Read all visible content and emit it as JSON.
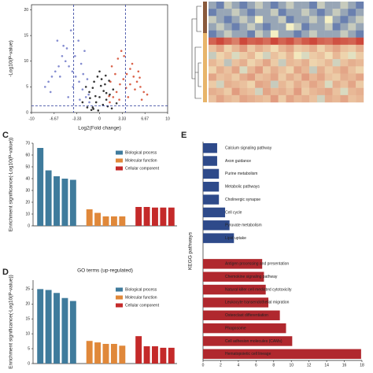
{
  "chart_data": [
    {
      "type": "scatter",
      "xlabel": "Log2(Fold change)",
      "ylabel": "-Log10(P-value)",
      "xlim": [
        -10,
        10
      ],
      "ylim": [
        0,
        21
      ],
      "xticks": [
        -10,
        -6.67,
        -3.33,
        0,
        3.33,
        6.67,
        10
      ],
      "yticks": [
        0,
        5,
        10,
        15,
        20
      ],
      "vlines": [
        -3.8,
        3.8
      ],
      "hline": 1.3,
      "series": [
        {
          "color": "#6f78c8",
          "x": [
            -1.5,
            -2,
            -2.5,
            -3,
            -3.5,
            -4,
            -4.5,
            -5,
            -5.5,
            -6,
            -6.5,
            -7,
            -7.5,
            -8,
            -2.2,
            -3.1,
            -4.2,
            -5.3,
            -1.8,
            -2.7,
            -3.6,
            -4.8,
            -6.2,
            -1.6,
            -2.4,
            -3.9,
            -5.8,
            -7.2,
            -2.9,
            -4.6
          ],
          "values": [
            2,
            3,
            4.5,
            6,
            7,
            8,
            9,
            10,
            11,
            9,
            8,
            7,
            6,
            5,
            12,
            14,
            16,
            13,
            6.5,
            9.5,
            11,
            12.5,
            14,
            3.5,
            7.5,
            5,
            7,
            4,
            2.5,
            3
          ]
        },
        {
          "color": "#d4482c",
          "x": [
            1.5,
            2,
            2.5,
            3,
            3.5,
            4,
            4.5,
            5,
            5.5,
            6,
            6.5,
            7,
            1.8,
            2.7,
            3.6,
            4.8,
            5.7,
            1.6,
            2.3,
            3.2,
            4.2,
            5.2,
            6.2,
            2.9,
            3.9,
            1.4,
            4.5,
            5.9
          ],
          "values": [
            2,
            3,
            4,
            5.5,
            6.5,
            7.5,
            8.5,
            7,
            6,
            5,
            4,
            3.5,
            9,
            10.5,
            11,
            9.5,
            8,
            6,
            7.5,
            12,
            3,
            4.5,
            2.5,
            2.5,
            4.8,
            3.2,
            5.5,
            6.8
          ]
        },
        {
          "color": "#111111",
          "x": [
            -1,
            -0.5,
            0,
            0.5,
            1,
            -1.5,
            1.5,
            -2,
            2,
            -0.8,
            0.8,
            -0.3,
            0.3,
            -1.2,
            1.2,
            -2.5,
            2.5,
            -0.6,
            0.6,
            0,
            -1.8,
            1.8,
            -1,
            1,
            -0.2,
            0.2,
            -1.4,
            1.4,
            -0.9,
            0.9
          ],
          "values": [
            1,
            2,
            3,
            1.5,
            2.5,
            4,
            3.5,
            5,
            4.5,
            6,
            5.5,
            7,
            6.5,
            0.5,
            1.2,
            2,
            1.8,
            3.2,
            4.2,
            8,
            1,
            0.8,
            4.8,
            3.8,
            0.4,
            5.2,
            2.8,
            6.2,
            0.7,
            7.2
          ]
        }
      ]
    },
    {
      "type": "heatmap",
      "zlim": [
        -2,
        2
      ],
      "colors": [
        "#3b5ba8",
        "#f5f0c4",
        "#c8352c"
      ],
      "values": [
        [
          -1,
          -1.5,
          -0.5,
          -1,
          -1.5,
          -1,
          -0.5,
          -1,
          -1.5,
          -1,
          -0.5,
          -1,
          -1,
          -1.5,
          -0.5,
          -1,
          -1,
          -0.5,
          -1,
          -1.5
        ],
        [
          -1.5,
          -1,
          -1,
          -0.5,
          -1,
          -1.5,
          -1,
          -1,
          -0.5,
          -1.5,
          -1,
          -1,
          -0.5,
          -1,
          -1.5,
          -1,
          -0.5,
          -1,
          -1.5,
          -1
        ],
        [
          -0.5,
          -1,
          -1.5,
          -1,
          -0.5,
          -1,
          0,
          -1,
          -1,
          -0.5,
          -1.5,
          -1,
          -1,
          -0.5,
          -1,
          0,
          -1,
          -1.5,
          -1,
          -0.5
        ],
        [
          -1,
          -0.5,
          -1,
          -1.5,
          -1,
          -0.5,
          -1,
          -1.5,
          -1,
          -1,
          0,
          -0.5,
          -1.5,
          -1,
          -1,
          -0.5,
          -1.5,
          -1,
          -0.5,
          -1
        ],
        [
          -1.5,
          -1,
          -0.5,
          -1,
          -1,
          -1.5,
          -0.5,
          -1,
          0,
          -1,
          -1,
          -1.5,
          -1,
          -0.5,
          -1,
          -1,
          -1,
          -0.5,
          -1,
          -1.5
        ],
        [
          1.5,
          1.8,
          1.5,
          1.2,
          1.8,
          1.5,
          1.6,
          1.4,
          1.8,
          1.5,
          1.7,
          1.3,
          1.6,
          1.8,
          1.5,
          1.4,
          1.7,
          1.6,
          1.5,
          1.8
        ],
        [
          0.5,
          0.8,
          0.3,
          0.6,
          0.9,
          0.4,
          0.7,
          0.5,
          0.2,
          0.6,
          0.8,
          0.4,
          0.5,
          0.7,
          0.3,
          0.6,
          0.8,
          0.5,
          0.4,
          0.7
        ],
        [
          -0.5,
          0.3,
          0.5,
          -0.3,
          0.4,
          0.6,
          0.2,
          -0.4,
          0.5,
          0.3,
          0.6,
          0.1,
          -0.3,
          0.4,
          0.5,
          0.2,
          0.6,
          0.3,
          -0.2,
          0.4
        ],
        [
          0.6,
          0.4,
          -0.6,
          0.5,
          0.7,
          0.3,
          0.5,
          0.8,
          0.4,
          -0.5,
          0.6,
          0.5,
          0.7,
          0.3,
          0.4,
          0.6,
          -0.4,
          0.5,
          0.7,
          0.6
        ],
        [
          0.3,
          0.7,
          0.5,
          0.8,
          -0.3,
          0.6,
          0.9,
          0.4,
          0.7,
          0.5,
          0.3,
          0.8,
          0.6,
          -0.5,
          0.7,
          0.4,
          0.6,
          0.8,
          0.5,
          0.3
        ],
        [
          0.8,
          0.5,
          0.6,
          0.4,
          0.7,
          0.9,
          0.5,
          0.6,
          0.8,
          0.4,
          0.7,
          0.5,
          0.9,
          0.6,
          0.8,
          0.5,
          0.4,
          0.7,
          0.6,
          0.8
        ],
        [
          0.4,
          -0.4,
          0.7,
          0.6,
          0.5,
          0.3,
          0.8,
          0.7,
          -0.5,
          0.6,
          0.4,
          0.7,
          0.5,
          0.8,
          0.6,
          -0.3,
          0.7,
          0.5,
          0.8,
          0.4
        ],
        [
          0.7,
          0.6,
          0.4,
          0.9,
          0.6,
          0.5,
          -0.4,
          0.8,
          0.6,
          0.7,
          0.5,
          0.9,
          0.4,
          0.6,
          0.7,
          0.8,
          0.5,
          -0.3,
          0.6,
          0.7
        ],
        [
          0.5,
          0.8,
          0.6,
          0.5,
          0.8,
          0.7,
          0.6,
          0.5,
          0.9,
          0.4,
          0.8,
          0.6,
          0.7,
          0.5,
          -0.4,
          0.7,
          0.6,
          0.8,
          0.5,
          0.6
        ]
      ]
    },
    {
      "type": "bar",
      "label": "C",
      "ylabel": "Enrichment significance(-Log10(P-value))",
      "categories": [
        null,
        null,
        null,
        null,
        null,
        null,
        null,
        null,
        null,
        null,
        null,
        null,
        null,
        null,
        null
      ],
      "ylim": [
        0,
        70
      ],
      "yticks": [
        0,
        10,
        20,
        30,
        40,
        50,
        60,
        70
      ],
      "legend": "upper right",
      "series": [
        {
          "name": "Biological process",
          "color": "#3f7b9c",
          "values": [
            66,
            47,
            42,
            40,
            39,
            null,
            null,
            null,
            null,
            null,
            null,
            null,
            null,
            null,
            null
          ]
        },
        {
          "name": "Molecular function",
          "color": "#e0883a",
          "values": [
            null,
            null,
            null,
            null,
            null,
            14,
            11,
            8,
            8,
            8,
            null,
            null,
            null,
            null,
            null
          ]
        },
        {
          "name": "Cellular component",
          "color": "#c42a2a",
          "values": [
            null,
            null,
            null,
            null,
            null,
            null,
            null,
            null,
            null,
            null,
            16,
            16,
            15.5,
            15.5,
            15.5
          ]
        }
      ]
    },
    {
      "type": "bar",
      "label": "D",
      "title": "GO terms (up-regulated)",
      "ylabel": "Enrichment significance(-Log10(P-value))",
      "categories": [
        null,
        null,
        null,
        null,
        null,
        null,
        null,
        null,
        null,
        null,
        null,
        null,
        null,
        null,
        null
      ],
      "ylim": [
        0,
        28
      ],
      "yticks": [
        0,
        5,
        10,
        15,
        20,
        25
      ],
      "legend": "upper right",
      "series": [
        {
          "name": "Biological process",
          "color": "#3f7b9c",
          "values": [
            25,
            24.7,
            23.7,
            22,
            21,
            null,
            null,
            null,
            null,
            null,
            null,
            null,
            null,
            null,
            null
          ]
        },
        {
          "name": "Molecular function",
          "color": "#e0883a",
          "values": [
            null,
            null,
            null,
            null,
            null,
            7.6,
            7.1,
            6.6,
            6.6,
            6,
            null,
            null,
            null,
            null,
            null
          ]
        },
        {
          "name": "Cellular component",
          "color": "#c42a2a",
          "values": [
            null,
            null,
            null,
            null,
            null,
            null,
            null,
            null,
            null,
            null,
            9.2,
            5.8,
            5.8,
            5.3,
            5.3
          ]
        }
      ]
    },
    {
      "type": "barh",
      "label": "E",
      "ylabel": "KEGG pathways",
      "categories": [
        "Calcium signaling pathway",
        "Axon guidance",
        "Purine metabolism",
        "Metabolic pathways",
        "Cholinergic synapse",
        "Cell cycle",
        "Pyruvate metabolism",
        "Lipid uptake",
        "Antigen processing and presentation",
        "Chemokine signaling pathway",
        "Natural killer cell mediated cytotoxicity",
        "Leukocyte transendothelial migration",
        "Osteoclast differentiation",
        "Phagosome",
        "Cell adhesion molecules (CAMs)",
        "Hematopoietic cell lineage"
      ],
      "xlim": [
        0,
        18
      ],
      "xticks": [
        0,
        2,
        4,
        6,
        8,
        10,
        12,
        14,
        16,
        18
      ],
      "series": [
        {
          "color": "#2e4a8a",
          "values": [
            1.6,
            1.6,
            1.8,
            1.8,
            1.8,
            2.5,
            3,
            3.5,
            null,
            null,
            null,
            null,
            null,
            null,
            null,
            null
          ]
        },
        {
          "color": "#b0282e",
          "values": [
            null,
            null,
            null,
            null,
            null,
            null,
            null,
            null,
            6.7,
            6.9,
            7.1,
            7.4,
            8.7,
            9.4,
            10.1,
            17.9
          ]
        }
      ]
    }
  ]
}
